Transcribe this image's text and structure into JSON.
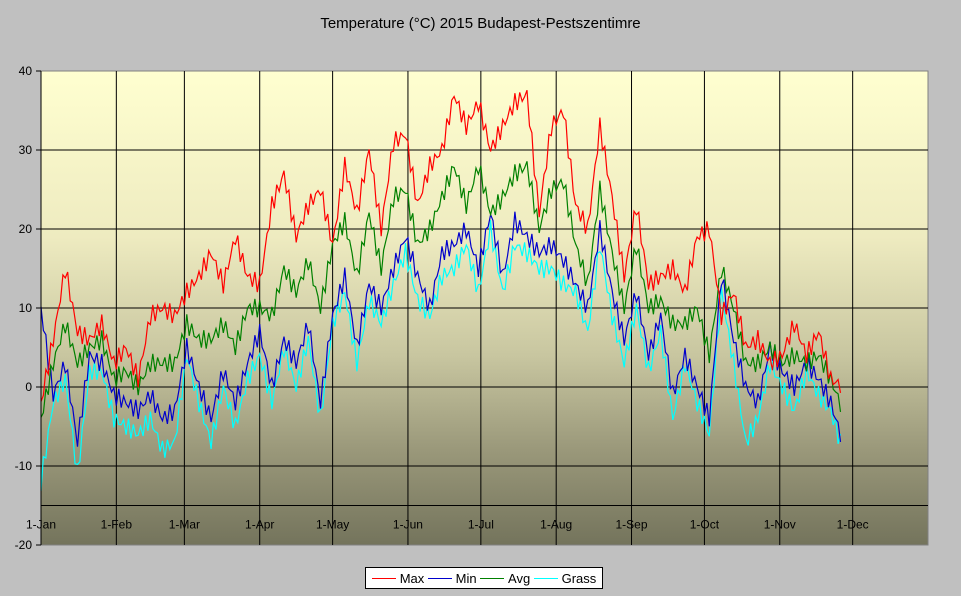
{
  "chart_data": {
    "type": "line",
    "title": "Temperature (°C) 2015 Budapest-Pestszentimre",
    "xlabel": "",
    "ylabel": "",
    "ylim": [
      -20,
      40
    ],
    "yticks": [
      40,
      30,
      20,
      10,
      0,
      -10,
      -20
    ],
    "ytick_labels": [
      "40",
      "30",
      "20",
      "10",
      "0",
      "-10",
      "-20"
    ],
    "x_axis_crossing_value": -15,
    "x_ticks": [
      {
        "label": "1-Jan",
        "day": 0
      },
      {
        "label": "1-Feb",
        "day": 31
      },
      {
        "label": "1-Mar",
        "day": 59
      },
      {
        "label": "1-Apr",
        "day": 90
      },
      {
        "label": "1-May",
        "day": 120
      },
      {
        "label": "1-Jun",
        "day": 151
      },
      {
        "label": "1-Jul",
        "day": 181
      },
      {
        "label": "1-Aug",
        "day": 212
      },
      {
        "label": "1-Sep",
        "day": 243
      },
      {
        "label": "1-Oct",
        "day": 273
      },
      {
        "label": "1-Nov",
        "day": 304
      },
      {
        "label": "1-Dec",
        "day": 334
      }
    ],
    "x_range_days": [
      0,
      365
    ],
    "grid": true,
    "legend_position": "bottom",
    "sample_interval_days": 5,
    "series": [
      {
        "name": "Max",
        "color": "#ff0000",
        "values": [
          -2,
          6,
          15,
          7,
          6,
          8,
          3,
          5,
          1,
          9,
          10,
          9,
          12,
          14,
          17,
          13,
          19,
          14,
          13,
          23,
          27,
          19,
          23,
          25,
          18,
          28,
          22,
          30,
          20,
          31,
          32,
          23,
          28,
          30,
          37,
          33,
          36,
          30,
          33,
          36,
          37,
          22,
          33,
          35,
          23,
          20,
          33,
          24,
          14,
          23,
          13,
          14,
          15,
          12,
          19,
          20,
          9,
          12,
          5,
          6,
          3,
          4,
          8,
          4,
          7,
          1,
          0
        ]
      },
      {
        "name": "Min",
        "color": "#0000cc",
        "values": [
          10,
          -1,
          3,
          -7,
          4,
          3,
          -1,
          -2,
          -3,
          -1,
          -4,
          -3,
          5,
          0,
          -4,
          2,
          -2,
          3,
          7,
          0,
          6,
          3,
          8,
          -2,
          9,
          14,
          5,
          13,
          10,
          15,
          19,
          14,
          10,
          17,
          18,
          20,
          15,
          22,
          14,
          21,
          19,
          17,
          18,
          16,
          13,
          10,
          20,
          12,
          6,
          12,
          4,
          9,
          -1,
          4,
          0,
          -4,
          14,
          6,
          0,
          -2,
          5,
          2,
          0,
          3,
          1,
          -2,
          -7
        ]
      },
      {
        "name": "Avg",
        "color": "#008000",
        "values": [
          -4,
          3,
          8,
          3,
          5,
          6,
          1,
          2,
          0,
          3,
          3,
          3,
          8,
          6,
          6,
          8,
          5,
          10,
          10,
          9,
          15,
          12,
          16,
          10,
          18,
          21,
          14,
          22,
          15,
          24,
          25,
          18,
          20,
          24,
          28,
          23,
          28,
          22,
          24,
          27,
          28,
          20,
          25,
          26,
          18,
          13,
          25,
          17,
          10,
          18,
          10,
          11,
          8,
          8,
          10,
          4,
          15,
          10,
          3,
          3,
          5,
          3,
          4,
          3,
          4,
          1,
          -3
        ]
      },
      {
        "name": "Grass",
        "color": "#00ffff",
        "values": [
          -12,
          -2,
          1,
          -11,
          2,
          2,
          -4,
          -5,
          -6,
          -4,
          -8,
          -7,
          4,
          -2,
          -7,
          0,
          -5,
          1,
          4,
          -2,
          5,
          0,
          6,
          -4,
          8,
          12,
          3,
          11,
          8,
          13,
          17,
          11,
          9,
          14,
          15,
          18,
          12,
          20,
          12,
          18,
          17,
          15,
          15,
          13,
          12,
          7,
          18,
          9,
          3,
          10,
          2,
          7,
          -4,
          3,
          -2,
          -6,
          12,
          3,
          -7,
          -4,
          3,
          0,
          -3,
          2,
          -1,
          -3,
          -8
        ]
      }
    ]
  }
}
